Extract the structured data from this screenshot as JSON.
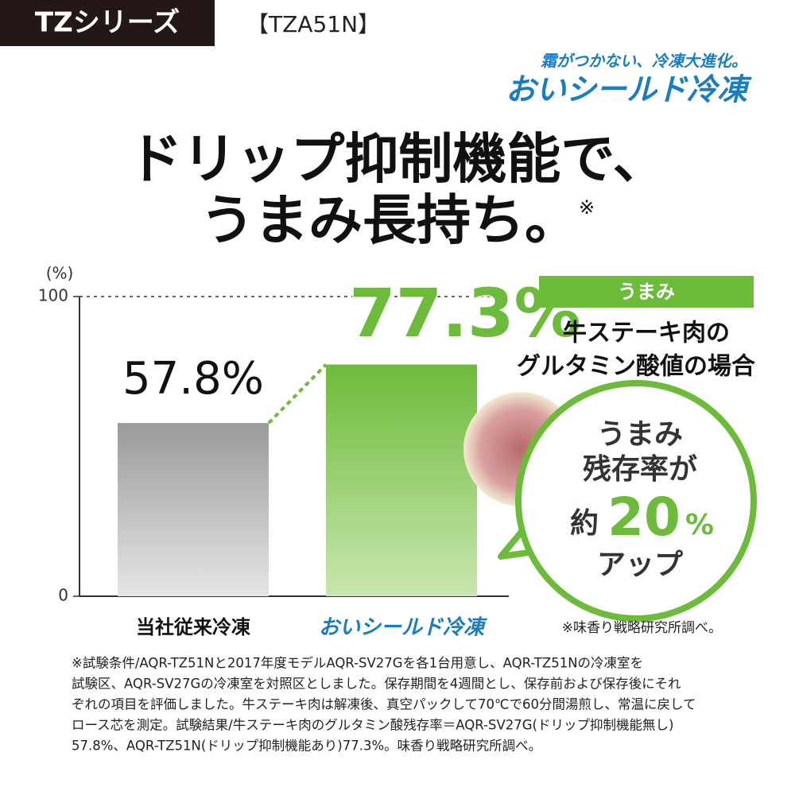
{
  "chart_data": {
    "type": "bar",
    "series_label": "TZシリーズ",
    "model": "【TZA51N】",
    "logo_tagline": "霜がつかない、冷凍大進化。",
    "logo": "おいシールド冷凍",
    "title_lines": [
      "ドリップ抑制機能で、",
      "うまみ長持ち。"
    ],
    "title_mark": "※",
    "y_label": "(%)",
    "categories": [
      "当社従来冷凍",
      "おいシールド冷凍"
    ],
    "values": [
      57.8,
      77.3
    ],
    "value_labels": [
      "57.8%",
      "77.3%"
    ],
    "colors": [
      "#9a9a9a",
      "#6dbb3a"
    ],
    "ylim": [
      0,
      100
    ],
    "yticks": [
      0,
      100
    ],
    "grid": true,
    "badge": "うまみ",
    "condition_lines": [
      "牛ステーキ肉の",
      "グルタミン酸値の場合"
    ],
    "bubble": {
      "line1": "うまみ",
      "line2": "残存率が",
      "prefix": "約",
      "number": "20",
      "unit": "%",
      "line4": "アップ"
    },
    "source": "※味香り戦略研究所調べ。",
    "footnote_lines": [
      "※試験条件/AQR-TZ51Nと2017年度モデルAQR-SV27Gを各1台用意し、AQR-TZ51Nの冷凍室を",
      "試験区、AQR-SV27Gの冷凍室を対照区としました。保存期間を4週間とし、保存前および保存後にそれ",
      "ぞれの項目を評価しました。牛ステーキ肉は解凍後、真空パックして70℃で60分間湯煎し、常温に戻して",
      "ロース芯を測定。試験結果/牛ステーキ肉のグルタミン酸残存率＝AQR-SV27G(ドリップ抑制機能無し)",
      "57.8%、AQR-TZ51N(ドリップ抑制機能あり)77.3%。味香り戦略研究所調べ。"
    ]
  }
}
